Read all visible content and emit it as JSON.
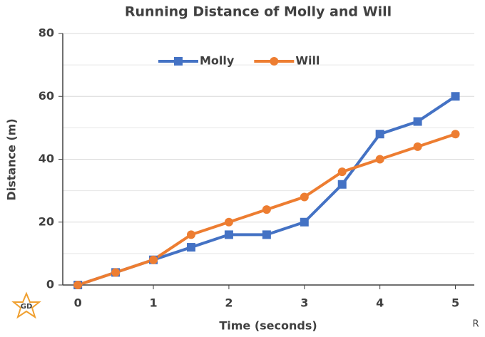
{
  "chart_data": {
    "type": "line",
    "title": "Running Distance of Molly and Will",
    "x_label": "Time (seconds)",
    "y_label": "Distance (m)",
    "x": [
      0,
      0.5,
      1,
      1.5,
      2,
      2.5,
      3,
      3.5,
      4,
      4.5,
      5
    ],
    "series": [
      {
        "name": "Molly",
        "color": "#4472c4",
        "marker": "square",
        "values": [
          0,
          4,
          8,
          12,
          16,
          16,
          20,
          32,
          48,
          52,
          60
        ]
      },
      {
        "name": "Will",
        "color": "#ed7d31",
        "marker": "circle",
        "values": [
          0,
          4,
          8,
          16,
          20,
          24,
          28,
          36,
          40,
          44,
          48
        ]
      }
    ],
    "xlim": [
      -0.2,
      5.25
    ],
    "xticks": [
      0,
      1,
      2,
      3,
      4,
      5
    ],
    "ylim": [
      0,
      80
    ],
    "yticks": [
      0,
      20,
      40,
      60,
      80
    ],
    "minor_yticks": [
      10,
      30,
      50,
      70
    ],
    "grid": true,
    "legend": "top",
    "logo": "GD",
    "corner_mark": "R"
  }
}
